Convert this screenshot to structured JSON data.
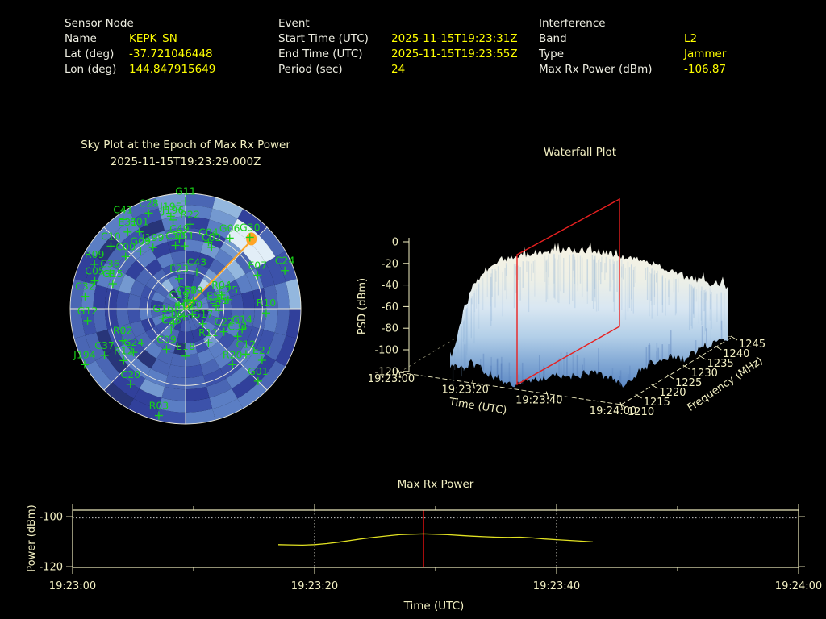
{
  "header": {
    "sensor": {
      "heading": "Sensor Node",
      "rows": [
        {
          "label": "Name",
          "value": "KEPK_SN"
        },
        {
          "label": "Lat (deg)",
          "value": "-37.721046448"
        },
        {
          "label": "Lon (deg)",
          "value": "144.847915649"
        }
      ]
    },
    "event": {
      "heading": "Event",
      "rows": [
        {
          "label": "Start Time (UTC)",
          "value": "2025-11-15T19:23:31Z"
        },
        {
          "label": "End Time (UTC)",
          "value": "2025-11-15T19:23:55Z"
        },
        {
          "label": "Period (sec)",
          "value": "24"
        }
      ]
    },
    "interference": {
      "heading": "Interference",
      "rows": [
        {
          "label": "Band",
          "value": "L2"
        },
        {
          "label": "Type",
          "value": "Jammer"
        },
        {
          "label": "Max Rx Power (dBm)",
          "value": "-106.87"
        }
      ]
    }
  },
  "colors": {
    "background": "#000000",
    "axis": "#f2efc2",
    "grid": "#eceadb",
    "satellite_green": "#17d417",
    "track_orange": "#ffa424",
    "slice_red": "#e82020",
    "epoch_red": "#dd1111",
    "curve_yellow": "#e2e222",
    "threshold_gray": "#c9c9c9",
    "gridline_dotted": "#dedecf",
    "heatmap_palette": [
      "#283579",
      "#31409b",
      "#3c52aa",
      "#4a66b4",
      "#5b7ec4",
      "#7499d0",
      "#93b7de",
      "#b8d3ea",
      "#e2eef7"
    ]
  },
  "chart_data": [
    {
      "type": "skyplot",
      "title": "Sky Plot at the Epoch of Max Rx Power",
      "subtitle": "2025-11-15T19:23:29.000Z",
      "elevation_rings_deg": [
        30,
        60
      ],
      "azimuth_spokes_deg": 45,
      "pattern_seed": 42,
      "max_power_marker": {
        "az": 44,
        "el": 16
      },
      "satellites": [
        {
          "id": "G11",
          "az": 0,
          "el": 6
        },
        {
          "id": "C41",
          "az": 325,
          "el": 5
        },
        {
          "id": "C28",
          "az": 339,
          "el": 10
        },
        {
          "id": "J195",
          "az": 351,
          "el": 17
        },
        {
          "id": "J196",
          "az": 352,
          "el": 20
        },
        {
          "id": "R22",
          "az": 3,
          "el": 24
        },
        {
          "id": "E31",
          "az": 323,
          "el": 15
        },
        {
          "id": "E01",
          "az": 329,
          "el": 20
        },
        {
          "id": "C49",
          "az": 355,
          "el": 35
        },
        {
          "id": "C50",
          "az": 351,
          "el": 40
        },
        {
          "id": "C51",
          "az": 359,
          "el": 41
        },
        {
          "id": "G06",
          "az": 32,
          "el": 25
        },
        {
          "id": "G30",
          "az": 42,
          "el": 15
        },
        {
          "id": "C04",
          "az": 19,
          "el": 35
        },
        {
          "id": "C02",
          "az": 23,
          "el": 38
        },
        {
          "id": "C10",
          "az": 310,
          "el": 14
        },
        {
          "id": "C00",
          "az": 311,
          "el": 28
        },
        {
          "id": "G09",
          "az": 322,
          "el": 33
        },
        {
          "id": "J199",
          "az": 332,
          "el": 36
        },
        {
          "id": "C24",
          "az": 69,
          "el": 7
        },
        {
          "id": "E07",
          "az": 65,
          "el": 28
        },
        {
          "id": "E23",
          "az": 348,
          "el": 66
        },
        {
          "id": "C43",
          "az": 17,
          "el": 60
        },
        {
          "id": "R09",
          "az": 296,
          "el": 11
        },
        {
          "id": "C36",
          "az": 295,
          "el": 25
        },
        {
          "id": "C05",
          "az": 287,
          "el": 16
        },
        {
          "id": "G15",
          "az": 289,
          "el": 30
        },
        {
          "id": "C32",
          "az": 277,
          "el": 11
        },
        {
          "id": "G12",
          "az": 263,
          "el": 13
        },
        {
          "id": "R04",
          "az": 69,
          "el": 60
        },
        {
          "id": "C25",
          "az": 78,
          "el": 56
        },
        {
          "id": "R10",
          "az": 93,
          "el": 27
        },
        {
          "id": "E41",
          "az": 93,
          "el": 64
        },
        {
          "id": "E51",
          "az": 85,
          "el": 66
        },
        {
          "id": "C58",
          "az": 10,
          "el": 83
        },
        {
          "id": "E19",
          "az": 42,
          "el": 81
        },
        {
          "id": "C39",
          "az": 302,
          "el": 84
        },
        {
          "id": "E12",
          "az": 192,
          "el": 84
        },
        {
          "id": "G20",
          "az": 131,
          "el": 83
        },
        {
          "id": "G17",
          "az": 131,
          "el": 72
        },
        {
          "id": "G14",
          "az": 110,
          "el": 43
        },
        {
          "id": "C22",
          "az": 121,
          "el": 55
        },
        {
          "id": "C34",
          "az": 118,
          "el": 44
        },
        {
          "id": "C06",
          "az": 218,
          "el": 75
        },
        {
          "id": "C26",
          "az": 214,
          "el": 70
        },
        {
          "id": "G16",
          "az": 247,
          "el": 71
        },
        {
          "id": "R11",
          "az": 146,
          "el": 58
        },
        {
          "id": "R02",
          "az": 243,
          "el": 35
        },
        {
          "id": "C09",
          "az": 205,
          "el": 55
        },
        {
          "id": "E18",
          "az": 180,
          "el": 53
        },
        {
          "id": "C37",
          "az": 240,
          "el": 17
        },
        {
          "id": "G24",
          "az": 230,
          "el": 37
        },
        {
          "id": "R12",
          "az": 230,
          "el": 27
        },
        {
          "id": "J194",
          "az": 241,
          "el": 0
        },
        {
          "id": "C12",
          "az": 127,
          "el": 31
        },
        {
          "id": "E27",
          "az": 124,
          "el": 18
        },
        {
          "id": "R20",
          "az": 140,
          "el": 33
        },
        {
          "id": "G01",
          "az": 135,
          "el": 10
        },
        {
          "id": "C20",
          "az": 216,
          "el": 17
        },
        {
          "id": "R03",
          "az": 194,
          "el": 4
        }
      ]
    },
    {
      "type": "surface",
      "title": "Waterfall Plot",
      "xlabel": "Time (UTC)",
      "ylabel": "Frequency (MHz)",
      "zlabel": "PSD (dBm)",
      "x_ticks": [
        "19:23:00",
        "19:23:20",
        "19:23:40",
        "19:24:00"
      ],
      "y_ticks": [
        1210,
        1215,
        1220,
        1225,
        1230,
        1235,
        1240,
        1245
      ],
      "z_ticks": [
        0,
        -20,
        -40,
        -60,
        -80,
        -100,
        -120
      ],
      "z_range": [
        -120,
        0
      ],
      "freq_span_mhz": [
        1210,
        1245
      ],
      "slice_epoch": "19:23:29",
      "signal_t_sec": [
        14,
        56
      ],
      "plateau_psd_dbm": -28,
      "noise_floor_dbm": -108
    },
    {
      "type": "line",
      "title": "Max Rx Power",
      "xlabel": "Time (UTC)",
      "ylabel": "Power (dBm)",
      "x_ticks": [
        "19:23:00",
        "19:23:20",
        "19:23:40",
        "19:24:00"
      ],
      "x_minor_ticks_sec": [
        10,
        30,
        50
      ],
      "y_ticks": [
        -100,
        -120
      ],
      "ylim": [
        -120.3,
        -97.4
      ],
      "x_range_sec": [
        0,
        60
      ],
      "threshold_dbm": -100.5,
      "epoch_sec": 29,
      "series": {
        "t_sec": [
          17,
          18,
          19,
          20,
          21,
          22,
          23,
          24,
          25,
          26,
          27,
          28,
          29,
          30,
          31,
          32,
          33,
          34,
          35,
          36,
          37,
          38,
          39,
          40,
          41,
          42,
          43
        ],
        "power_dbm": [
          -111.2,
          -111.3,
          -111.4,
          -111.2,
          -110.8,
          -110.2,
          -109.5,
          -108.8,
          -108.2,
          -107.7,
          -107.2,
          -107.0,
          -106.87,
          -107.0,
          -107.2,
          -107.5,
          -107.8,
          -108.0,
          -108.2,
          -108.3,
          -108.2,
          -108.5,
          -108.9,
          -109.2,
          -109.5,
          -109.8,
          -110.1
        ]
      }
    }
  ]
}
